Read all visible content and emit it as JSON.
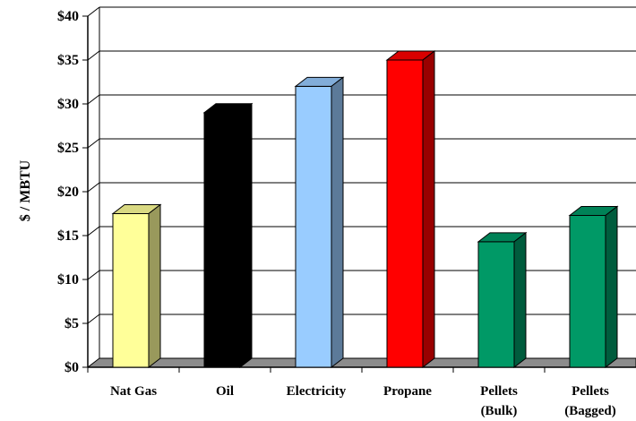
{
  "chart_data": {
    "type": "bar",
    "title": "",
    "xlabel": "",
    "ylabel": "$ / MBTU",
    "ylim": [
      0,
      40
    ],
    "yticks": [
      0,
      5,
      10,
      15,
      20,
      25,
      30,
      35,
      40
    ],
    "ytick_labels": [
      "$0",
      "$5",
      "$10",
      "$15",
      "$20",
      "$25",
      "$30",
      "$35",
      "$40"
    ],
    "grid": true,
    "categories": [
      {
        "lines": [
          "Nat Gas"
        ],
        "value": 17.5,
        "color": "#FFFF99"
      },
      {
        "lines": [
          "Oil"
        ],
        "value": 29,
        "color": "#000000"
      },
      {
        "lines": [
          "Electricity"
        ],
        "value": 32,
        "color": "#99CCFF"
      },
      {
        "lines": [
          "Propane"
        ],
        "value": 35,
        "color": "#FF0000"
      },
      {
        "lines": [
          "Pellets",
          "(Bulk)"
        ],
        "value": 14.3,
        "color": "#009966"
      },
      {
        "lines": [
          "Pellets",
          "(Bagged)"
        ],
        "value": 17.3,
        "color": "#009966"
      }
    ]
  }
}
